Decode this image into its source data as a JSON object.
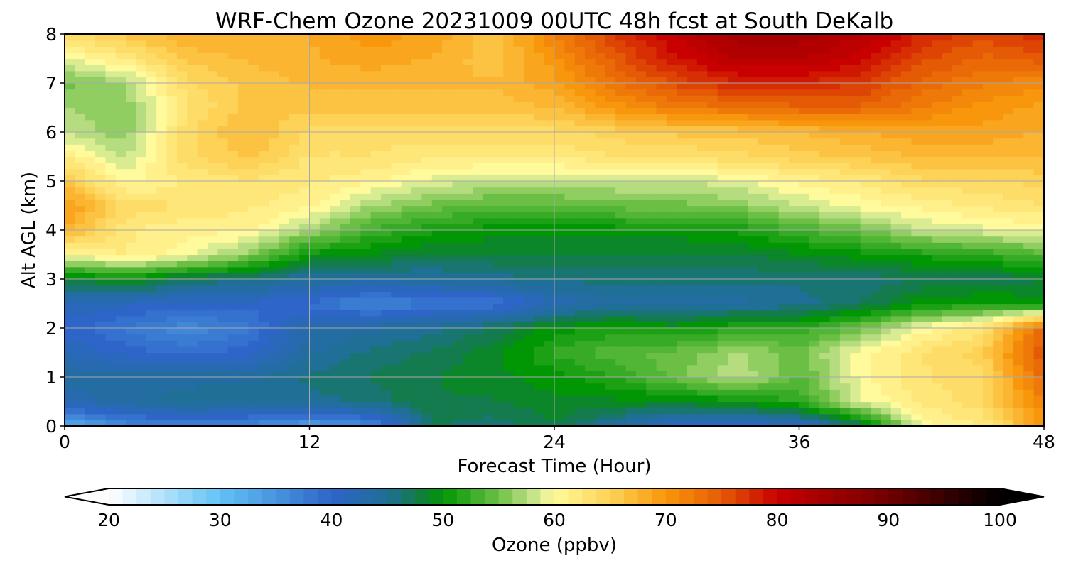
{
  "chart_data": {
    "type": "heatmap",
    "title": "WRF-Chem Ozone  20231009 00UTC 48h fcst at South DeKalb",
    "xlabel": "Forecast Time (Hour)",
    "ylabel": "Alt AGL (km)",
    "xlim": [
      0,
      48
    ],
    "ylim": [
      0,
      8
    ],
    "xticks": [
      "0",
      "12",
      "24",
      "36",
      "48"
    ],
    "yticks": [
      "0",
      "1",
      "2",
      "3",
      "4",
      "5",
      "6",
      "7",
      "8"
    ],
    "grid": true,
    "x": [
      0,
      3,
      6,
      9,
      12,
      15,
      18,
      21,
      24,
      27,
      30,
      33,
      36,
      39,
      42,
      45,
      48
    ],
    "y": [
      0,
      0.5,
      1,
      1.5,
      2,
      2.5,
      3,
      3.5,
      4,
      4.5,
      5,
      5.5,
      6,
      6.5,
      7,
      7.5,
      8
    ],
    "z": [
      [
        32,
        36,
        37,
        36,
        34,
        36,
        47,
        46,
        48,
        44,
        40,
        40,
        41,
        47,
        60,
        62,
        70
      ],
      [
        42,
        44,
        45,
        45,
        45,
        46,
        48,
        48,
        49,
        49,
        49,
        50,
        52,
        59,
        62,
        64,
        72
      ],
      [
        44,
        44,
        44,
        44,
        46,
        47,
        48,
        49,
        50,
        52,
        55,
        58,
        54,
        60,
        63,
        64,
        74
      ],
      [
        42,
        40,
        39,
        40,
        44,
        46,
        47,
        49,
        52,
        54,
        55,
        57,
        55,
        60,
        63,
        65,
        76
      ],
      [
        40,
        38,
        36,
        38,
        43,
        44,
        45,
        47,
        50,
        51,
        50,
        52,
        52,
        55,
        60,
        63,
        74
      ],
      [
        42,
        41,
        40,
        40,
        39,
        36,
        38,
        38,
        42,
        44,
        44,
        44,
        45,
        47,
        50,
        51,
        50
      ],
      [
        48,
        50,
        47,
        46,
        44,
        44,
        44,
        45,
        46,
        46,
        46,
        46,
        46,
        46,
        47,
        47,
        48
      ],
      [
        60,
        62,
        60,
        56,
        50,
        49,
        48,
        48,
        48,
        48,
        48,
        48,
        49,
        50,
        51,
        52,
        54
      ],
      [
        68,
        62,
        61,
        61,
        57,
        53,
        51,
        50,
        50,
        50,
        50,
        51,
        53,
        55,
        58,
        59,
        60
      ],
      [
        70,
        64,
        63,
        62,
        61,
        57,
        55,
        54,
        54,
        55,
        55,
        56,
        58,
        60,
        61,
        62,
        63
      ],
      [
        66,
        60,
        62,
        63,
        62,
        61,
        59,
        58,
        58,
        58,
        58,
        59,
        61,
        62,
        64,
        64,
        65
      ],
      [
        62,
        58,
        64,
        66,
        63,
        63,
        62,
        62,
        62,
        63,
        63,
        64,
        65,
        66,
        67,
        67,
        67
      ],
      [
        58,
        56,
        64,
        67,
        64,
        64,
        64,
        64,
        64,
        65,
        66,
        66,
        67,
        68,
        69,
        69,
        68
      ],
      [
        57,
        56,
        63,
        66,
        66,
        66,
        66,
        66,
        67,
        70,
        72,
        73,
        74,
        74,
        72,
        70,
        69
      ],
      [
        55,
        57,
        64,
        66,
        67,
        67,
        67,
        67,
        69,
        73,
        76,
        78,
        78,
        77,
        74,
        72,
        71
      ],
      [
        59,
        62,
        66,
        67,
        68,
        69,
        68,
        66,
        70,
        75,
        79,
        82,
        82,
        80,
        76,
        74,
        75
      ],
      [
        64,
        66,
        68,
        68,
        68,
        70,
        69,
        66,
        72,
        77,
        81,
        84,
        84,
        82,
        78,
        76,
        78
      ]
    ],
    "colorbar": {
      "label": "Ozone  (ppbv)",
      "min": 20,
      "max": 100,
      "ticks": [
        "20",
        "30",
        "40",
        "50",
        "60",
        "70",
        "80",
        "90",
        "100"
      ],
      "extend": "both",
      "stops": [
        [
          20,
          "#ffffff"
        ],
        [
          30,
          "#62c2f5"
        ],
        [
          40,
          "#2e65c8"
        ],
        [
          45,
          "#1f6f96"
        ],
        [
          48,
          "#117d3e"
        ],
        [
          50,
          "#019604"
        ],
        [
          55,
          "#6cbf45"
        ],
        [
          58,
          "#c4e38a"
        ],
        [
          60,
          "#fffa9c"
        ],
        [
          65,
          "#fdd256"
        ],
        [
          70,
          "#f8970b"
        ],
        [
          75,
          "#e55b05"
        ],
        [
          80,
          "#c80000"
        ],
        [
          90,
          "#700000"
        ],
        [
          100,
          "#000000"
        ]
      ]
    }
  }
}
